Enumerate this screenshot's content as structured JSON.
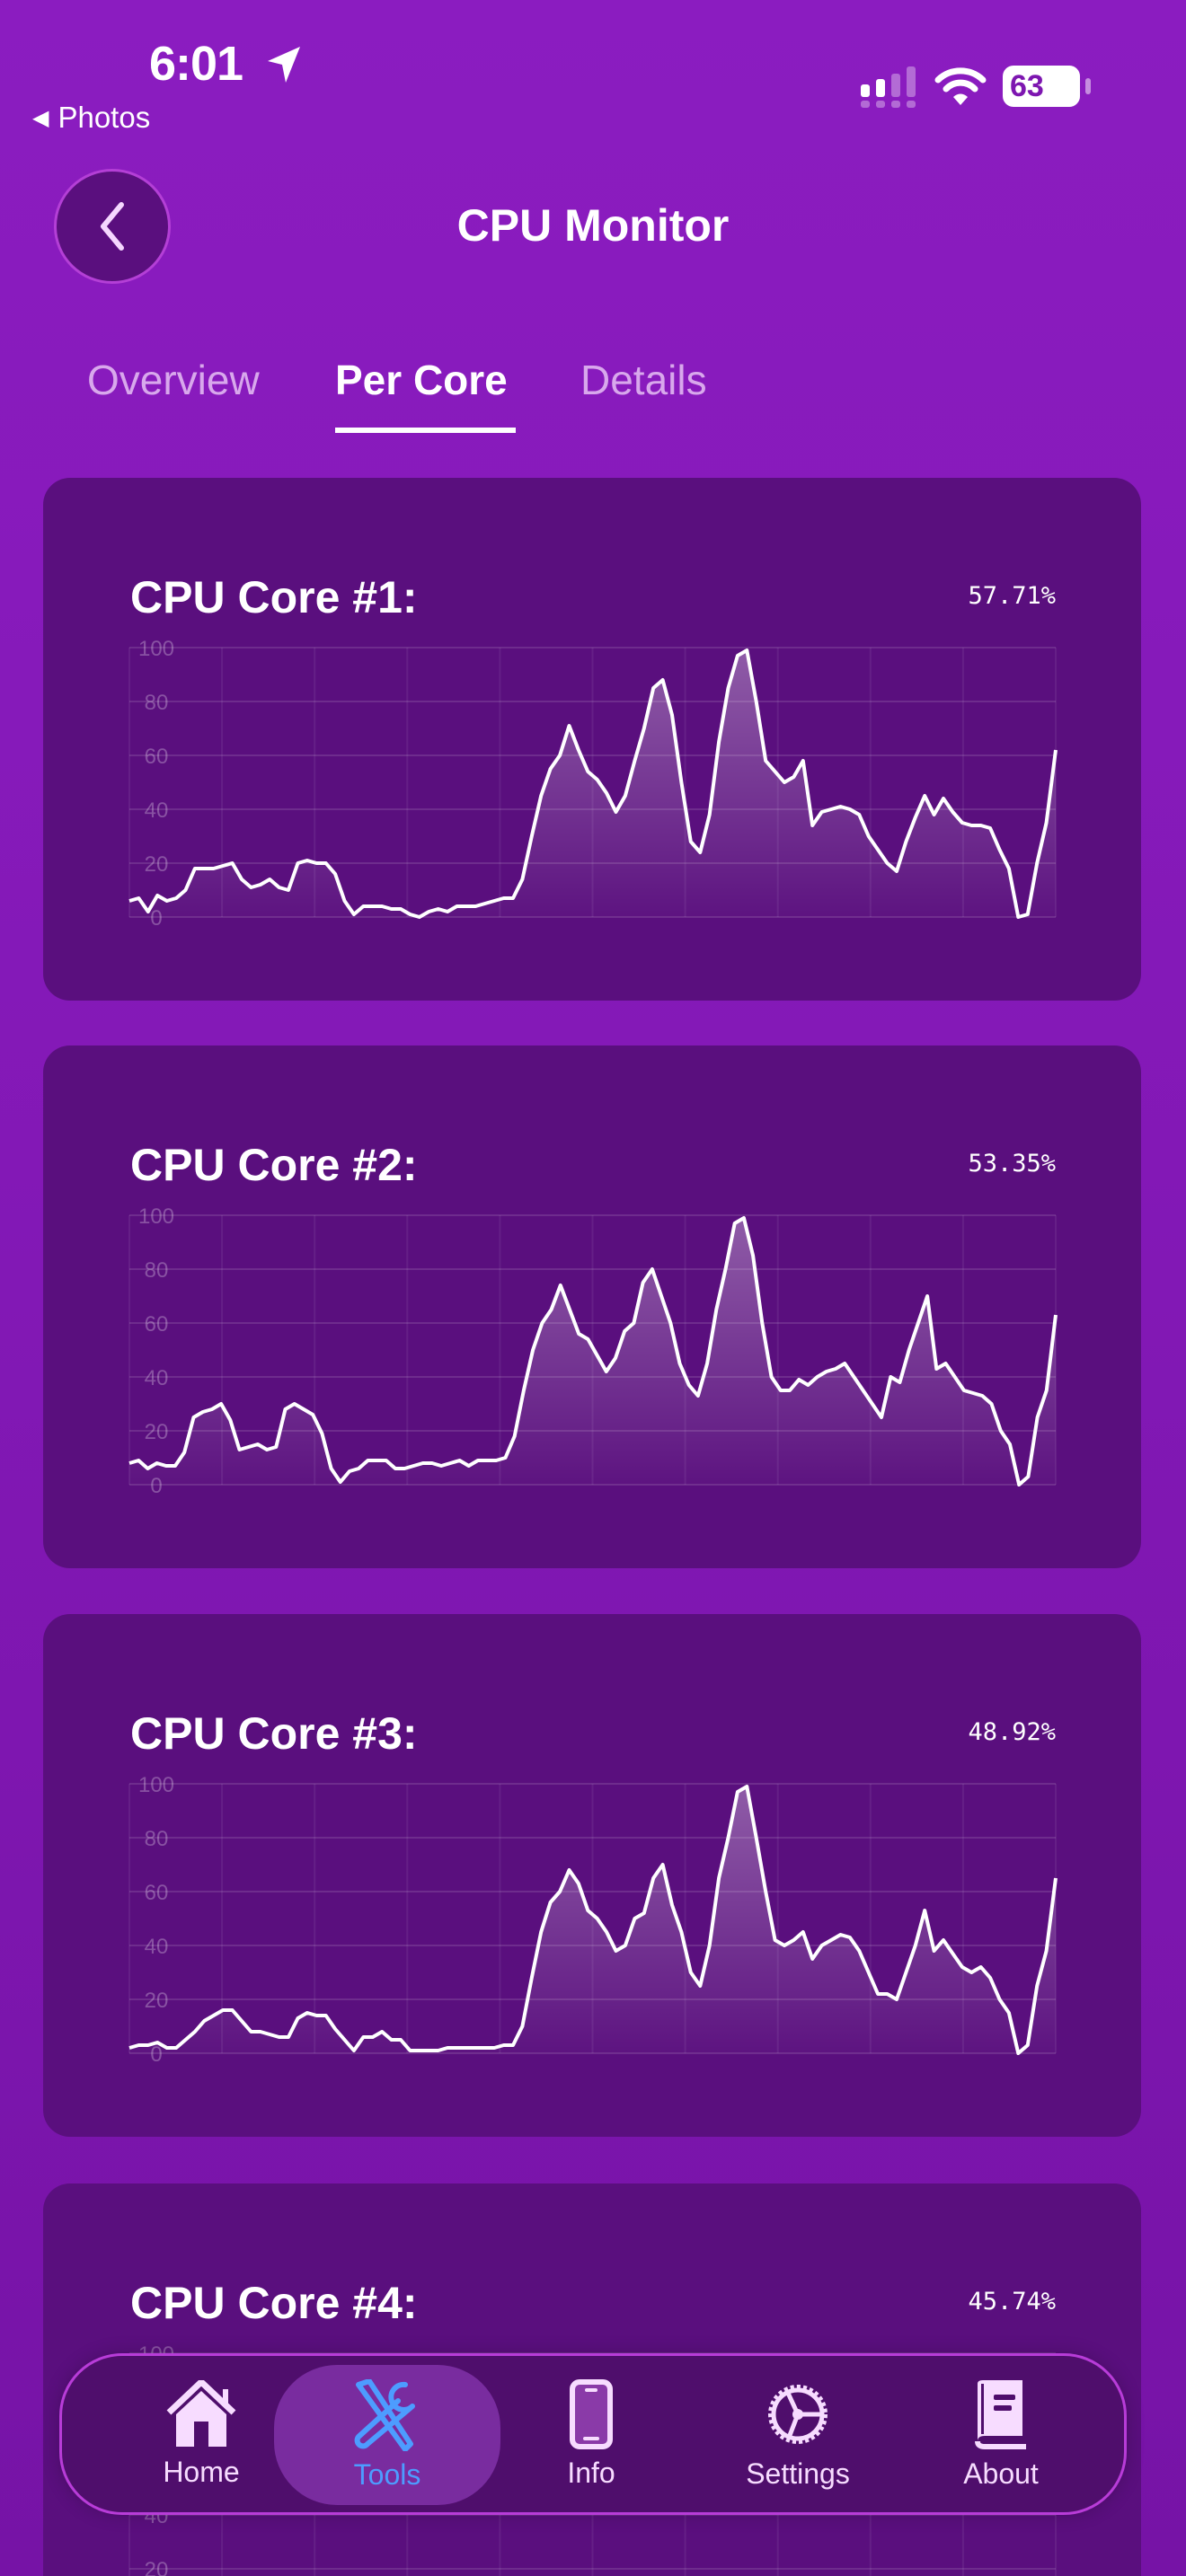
{
  "status_bar": {
    "time": "6:01",
    "back_app": "Photos",
    "battery": "63"
  },
  "header": {
    "title": "CPU Monitor",
    "back_icon": "chevron-left-icon"
  },
  "tabs": [
    {
      "label": "Overview",
      "active": false
    },
    {
      "label": "Per Core",
      "active": true
    },
    {
      "label": "Details",
      "active": false
    }
  ],
  "colors": {
    "background": "#8b1cc0",
    "card": "#5a0f7e",
    "line": "#ffffff",
    "active_nav": "#4d9cff"
  },
  "chart_data": [
    {
      "type": "area",
      "title": "CPU Core #1:",
      "value_label": "57.71%",
      "ylim": [
        0,
        100
      ],
      "yticks": [
        "0",
        "20",
        "40",
        "60",
        "80",
        "100"
      ],
      "grid": true,
      "values": [
        6,
        7,
        2,
        8,
        6,
        7,
        10,
        18,
        18,
        18,
        19,
        20,
        14,
        11,
        12,
        14,
        11,
        10,
        20,
        21,
        20,
        20,
        16,
        6,
        1,
        4,
        4,
        4,
        3,
        3,
        1,
        0,
        2,
        3,
        2,
        4,
        4,
        4,
        5,
        6,
        7,
        7,
        14,
        30,
        45,
        55,
        60,
        71,
        62,
        54,
        51,
        46,
        39,
        45,
        58,
        70,
        85,
        88,
        75,
        50,
        28,
        24,
        38,
        65,
        85,
        97,
        99,
        80,
        58,
        54,
        50,
        52,
        58,
        34,
        39,
        40,
        41,
        40,
        38,
        30,
        25,
        20,
        17,
        28,
        37,
        45,
        38,
        44,
        39,
        35,
        34,
        34,
        33,
        25,
        18,
        0,
        1,
        20,
        35,
        62
      ]
    },
    {
      "type": "area",
      "title": "CPU Core #2:",
      "value_label": "53.35%",
      "ylim": [
        0,
        100
      ],
      "yticks": [
        "0",
        "20",
        "40",
        "60",
        "80",
        "100"
      ],
      "grid": true,
      "values": [
        8,
        9,
        6,
        8,
        7,
        7,
        12,
        25,
        27,
        28,
        30,
        24,
        13,
        14,
        15,
        13,
        14,
        28,
        30,
        28,
        26,
        19,
        6,
        1,
        5,
        6,
        9,
        9,
        9,
        6,
        6,
        7,
        8,
        8,
        7,
        8,
        9,
        7,
        9,
        9,
        9,
        10,
        18,
        35,
        50,
        60,
        65,
        74,
        65,
        56,
        54,
        48,
        42,
        47,
        57,
        60,
        75,
        80,
        70,
        60,
        45,
        37,
        33,
        45,
        65,
        80,
        97,
        99,
        85,
        60,
        40,
        35,
        35,
        39,
        37,
        40,
        42,
        43,
        45,
        40,
        35,
        30,
        25,
        40,
        38,
        50,
        60,
        70,
        43,
        45,
        40,
        35,
        34,
        33,
        30,
        20,
        15,
        0,
        3,
        25,
        35,
        63
      ]
    },
    {
      "type": "area",
      "title": "CPU Core #3:",
      "value_label": "48.92%",
      "ylim": [
        0,
        100
      ],
      "yticks": [
        "0",
        "20",
        "40",
        "60",
        "80",
        "100"
      ],
      "grid": true,
      "values": [
        2,
        3,
        3,
        4,
        2,
        2,
        5,
        8,
        12,
        14,
        16,
        16,
        12,
        8,
        8,
        7,
        6,
        6,
        13,
        15,
        14,
        14,
        9,
        5,
        1,
        6,
        6,
        8,
        5,
        5,
        1,
        1,
        1,
        1,
        2,
        2,
        2,
        2,
        2,
        2,
        3,
        3,
        10,
        28,
        45,
        56,
        60,
        68,
        63,
        53,
        50,
        45,
        38,
        40,
        50,
        52,
        65,
        70,
        55,
        45,
        30,
        25,
        40,
        65,
        80,
        97,
        99,
        80,
        60,
        42,
        40,
        42,
        45,
        35,
        40,
        42,
        44,
        43,
        38,
        30,
        22,
        22,
        20,
        30,
        40,
        53,
        38,
        42,
        37,
        32,
        30,
        32,
        28,
        20,
        15,
        0,
        3,
        25,
        38,
        65
      ]
    },
    {
      "type": "area",
      "title": "CPU Core #4:",
      "value_label": "45.74%",
      "ylim": [
        0,
        100
      ],
      "yticks": [
        "0",
        "20",
        "40",
        "60",
        "80",
        "100"
      ],
      "grid": true,
      "values": []
    }
  ],
  "nav": [
    {
      "label": "Home",
      "icon": "home-icon",
      "active": false
    },
    {
      "label": "Tools",
      "icon": "tools-icon",
      "active": true
    },
    {
      "label": "Info",
      "icon": "phone-icon",
      "active": false
    },
    {
      "label": "Settings",
      "icon": "gear-icon",
      "active": false
    },
    {
      "label": "About",
      "icon": "book-icon",
      "active": false
    }
  ]
}
